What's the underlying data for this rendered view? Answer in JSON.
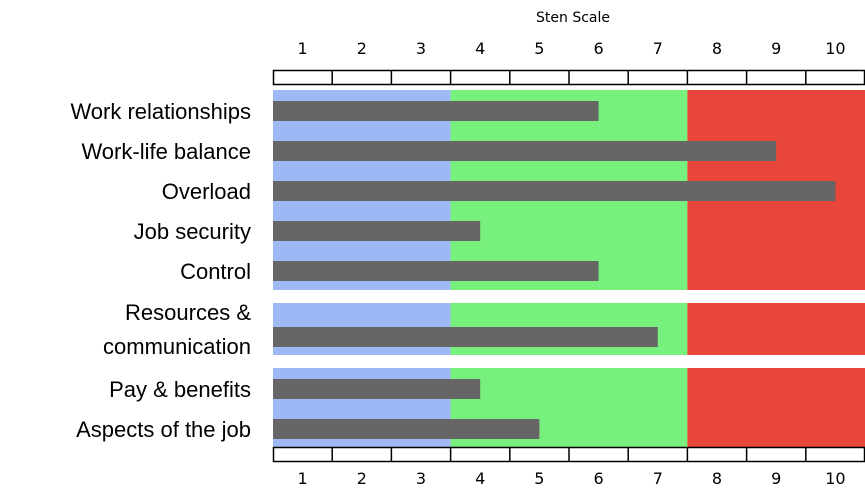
{
  "chart_data": {
    "type": "bar",
    "orientation": "horizontal",
    "title": "Sten Scale",
    "xlim": [
      0.5,
      10.5
    ],
    "ticks": [
      1,
      2,
      3,
      4,
      5,
      6,
      7,
      8,
      9,
      10
    ],
    "tick_labels": [
      "1",
      "2",
      "3",
      "4",
      "5",
      "6",
      "7",
      "8",
      "9",
      "10"
    ],
    "bands": [
      {
        "from": 0.5,
        "to": 3.5,
        "color": "#9db8f5"
      },
      {
        "from": 3.5,
        "to": 7.5,
        "color": "#77f07d"
      },
      {
        "from": 7.5,
        "to": 10.5,
        "color": "#e8453b"
      }
    ],
    "bar_color": "#666666",
    "groups": [
      {
        "categories": [
          {
            "label": "Work relationships",
            "value": 6
          },
          {
            "label": "Work-life balance",
            "value": 9
          },
          {
            "label": "Overload",
            "value": 10
          },
          {
            "label": "Job security",
            "value": 4
          },
          {
            "label": "Control",
            "value": 6
          }
        ]
      },
      {
        "categories": [
          {
            "label": "Resources & communication",
            "lines": [
              "Resources &",
              "communication"
            ],
            "value": 7
          }
        ]
      },
      {
        "categories": [
          {
            "label": "Pay & benefits",
            "value": 4
          },
          {
            "label": "Aspects of the job",
            "value": 5
          }
        ]
      }
    ]
  }
}
